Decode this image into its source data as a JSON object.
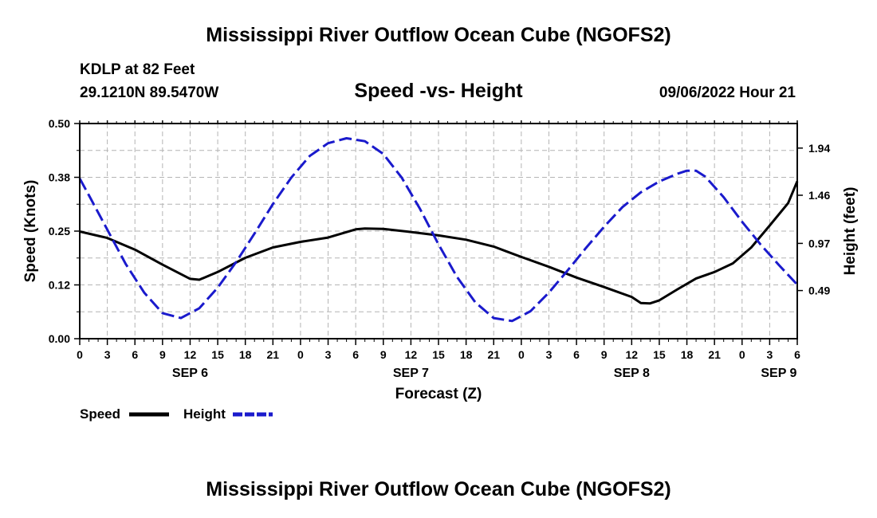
{
  "header": {
    "title": "Mississippi River Outflow Ocean Cube (NGOFS2)",
    "station": "KDLP at 82 Feet",
    "coords": "29.1210N  89.5470W",
    "subtitle": "Speed -vs- Height",
    "datetime": "09/06/2022 Hour 21"
  },
  "footer": {
    "title": "Mississippi River Outflow Ocean Cube (NGOFS2)"
  },
  "chart_data": {
    "type": "line",
    "title": "Speed -vs- Height",
    "xlabel": "Forecast (Z)",
    "ylabel": "Speed (Knots)",
    "y2label": "Height (feet)",
    "x_range_hours": [
      0,
      78
    ],
    "x_tick_step_hours": 3,
    "x_tick_labels": [
      "0",
      "3",
      "6",
      "9",
      "12",
      "15",
      "18",
      "21",
      "0",
      "3",
      "6",
      "9",
      "12",
      "15",
      "18",
      "21",
      "0",
      "3",
      "6",
      "9",
      "12",
      "15",
      "18",
      "21",
      "0",
      "3",
      "6"
    ],
    "day_labels": [
      {
        "label": "SEP 6",
        "hour": 12
      },
      {
        "label": "SEP 7",
        "hour": 36
      },
      {
        "label": "SEP 8",
        "hour": 60
      },
      {
        "label": "SEP 9",
        "hour": 76
      }
    ],
    "ylim": [
      0,
      0.5
    ],
    "y_ticks": [
      {
        "value": 0.0,
        "label": "0.00"
      },
      {
        "value": 0.125,
        "label": "0.12"
      },
      {
        "value": 0.25,
        "label": "0.25"
      },
      {
        "value": 0.375,
        "label": "0.38"
      },
      {
        "value": 0.5,
        "label": "0.50"
      }
    ],
    "y2lim": [
      0.0,
      2.19
    ],
    "y2_ticks": [
      {
        "value": 0.49,
        "label": "0.49"
      },
      {
        "value": 0.97,
        "label": "0.97"
      },
      {
        "value": 1.46,
        "label": "1.46"
      },
      {
        "value": 1.94,
        "label": "1.94"
      }
    ],
    "grid": true,
    "series": [
      {
        "name": "Speed",
        "axis": "left",
        "color": "#000000",
        "dash": "solid",
        "points": [
          [
            0,
            0.249
          ],
          [
            3,
            0.234
          ],
          [
            6,
            0.207
          ],
          [
            9,
            0.172
          ],
          [
            12,
            0.139
          ],
          [
            13,
            0.137
          ],
          [
            15,
            0.155
          ],
          [
            18,
            0.188
          ],
          [
            21,
            0.212
          ],
          [
            24,
            0.225
          ],
          [
            27,
            0.235
          ],
          [
            30,
            0.254
          ],
          [
            31,
            0.256
          ],
          [
            33,
            0.255
          ],
          [
            36,
            0.248
          ],
          [
            39,
            0.24
          ],
          [
            42,
            0.23
          ],
          [
            45,
            0.214
          ],
          [
            48,
            0.19
          ],
          [
            51,
            0.167
          ],
          [
            54,
            0.142
          ],
          [
            57,
            0.12
          ],
          [
            60,
            0.097
          ],
          [
            61,
            0.083
          ],
          [
            62,
            0.082
          ],
          [
            63,
            0.089
          ],
          [
            65,
            0.115
          ],
          [
            67,
            0.14
          ],
          [
            69,
            0.155
          ],
          [
            71,
            0.175
          ],
          [
            73,
            0.212
          ],
          [
            75,
            0.263
          ],
          [
            77,
            0.315
          ],
          [
            78,
            0.366
          ]
        ]
      },
      {
        "name": "Height",
        "axis": "right",
        "color": "#1a1acc",
        "dash": "dashed",
        "points": [
          [
            0,
            1.63
          ],
          [
            1,
            1.46
          ],
          [
            3,
            1.11
          ],
          [
            5,
            0.76
          ],
          [
            7,
            0.47
          ],
          [
            9,
            0.26
          ],
          [
            11,
            0.21
          ],
          [
            13,
            0.31
          ],
          [
            15,
            0.52
          ],
          [
            17,
            0.78
          ],
          [
            19,
            1.07
          ],
          [
            21,
            1.37
          ],
          [
            23,
            1.64
          ],
          [
            25,
            1.86
          ],
          [
            27,
            1.99
          ],
          [
            29,
            2.04
          ],
          [
            31,
            2.01
          ],
          [
            33,
            1.88
          ],
          [
            35,
            1.64
          ],
          [
            37,
            1.32
          ],
          [
            39,
            0.96
          ],
          [
            41,
            0.63
          ],
          [
            43,
            0.37
          ],
          [
            45,
            0.21
          ],
          [
            47,
            0.18
          ],
          [
            49,
            0.28
          ],
          [
            51,
            0.47
          ],
          [
            53,
            0.69
          ],
          [
            55,
            0.92
          ],
          [
            57,
            1.14
          ],
          [
            59,
            1.34
          ],
          [
            61,
            1.49
          ],
          [
            63,
            1.6
          ],
          [
            65,
            1.68
          ],
          [
            66,
            1.71
          ],
          [
            67,
            1.71
          ],
          [
            68,
            1.65
          ],
          [
            70,
            1.44
          ],
          [
            72,
            1.19
          ],
          [
            74,
            0.96
          ],
          [
            76,
            0.75
          ],
          [
            78,
            0.55
          ]
        ]
      }
    ],
    "legend": {
      "position": "bottom-left",
      "entries": [
        "Speed",
        "Height"
      ]
    }
  }
}
